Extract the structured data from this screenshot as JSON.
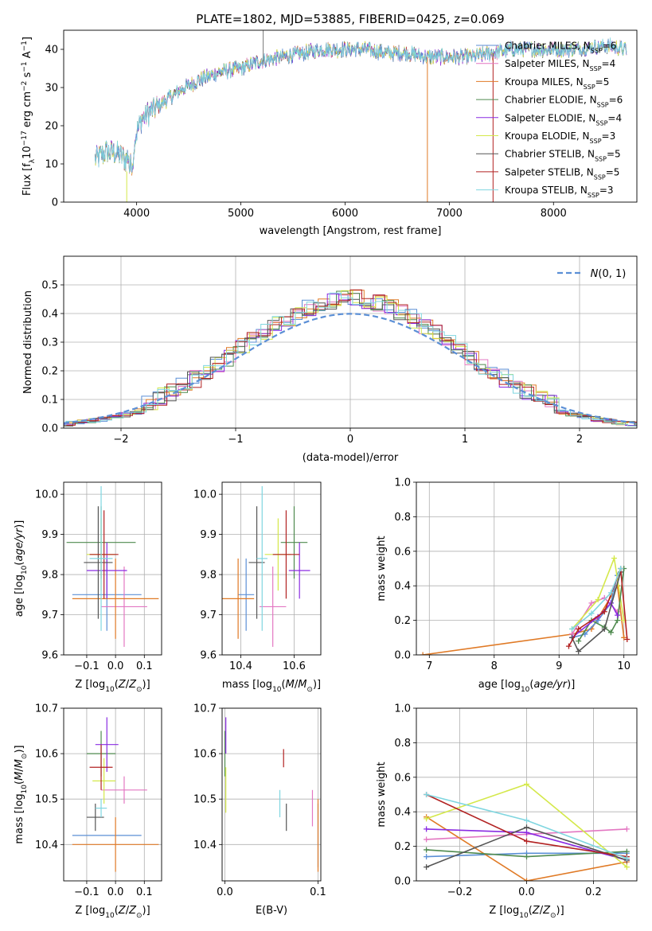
{
  "figure": {
    "title": "PLATE=1802, MJD=53885, FIBERID=0425, z=0.069"
  },
  "colors": {
    "chabrier_miles": "#5b8fd6",
    "salpeter_miles": "#e377c2",
    "kroupa_miles": "#e07a26",
    "chabrier_elodie": "#4f8a4f",
    "salpeter_elodie": "#8a2be2",
    "kroupa_elodie": "#d4e84a",
    "chabrier_stelib": "#555555",
    "salpeter_stelib": "#b22222",
    "kroupa_stelib": "#7fd6e0"
  },
  "legend": {
    "items": [
      {
        "key": "chabrier_miles",
        "label": "Chabrier MILES, N",
        "sub": "SSP",
        "suffix": "=6"
      },
      {
        "key": "salpeter_miles",
        "label": "Salpeter MILES, N",
        "sub": "SSP",
        "suffix": "=4"
      },
      {
        "key": "kroupa_miles",
        "label": "Kroupa MILES, N",
        "sub": "SSP",
        "suffix": "=5"
      },
      {
        "key": "chabrier_elodie",
        "label": "Chabrier ELODIE, N",
        "sub": "SSP",
        "suffix": "=6"
      },
      {
        "key": "salpeter_elodie",
        "label": "Salpeter ELODIE, N",
        "sub": "SSP",
        "suffix": "=4"
      },
      {
        "key": "kroupa_elodie",
        "label": "Kroupa ELODIE, N",
        "sub": "SSP",
        "suffix": "=3"
      },
      {
        "key": "chabrier_stelib",
        "label": "Chabrier STELIB, N",
        "sub": "SSP",
        "suffix": "=5"
      },
      {
        "key": "salpeter_stelib",
        "label": "Salpeter STELIB, N",
        "sub": "SSP",
        "suffix": "=5"
      },
      {
        "key": "kroupa_stelib",
        "label": "Kroupa STELIB, N",
        "sub": "SSP",
        "suffix": "=3"
      }
    ]
  },
  "chart_data": [
    {
      "id": "spectrum",
      "type": "line",
      "xlabel": "wavelength [Angstrom, rest frame]",
      "ylabel": "Flux [f_λ 10^-17 erg cm^-2 s^-1 A^-1]",
      "xlim": [
        3300,
        8800
      ],
      "ylim": [
        0,
        45
      ],
      "xticks": [
        4000,
        5000,
        6000,
        7000,
        8000
      ],
      "yticks": [
        0,
        10,
        20,
        30,
        40
      ],
      "anchors_x": [
        3600,
        3700,
        3800,
        3900,
        3950,
        4050,
        4150,
        4300,
        4400,
        4600,
        4800,
        5000,
        5200,
        5400,
        5600,
        5800,
        6000,
        6200,
        6400,
        6600,
        6800,
        7000,
        7200,
        7400,
        7600,
        7800,
        8000,
        8200,
        8500,
        8700
      ],
      "anchors_y": [
        11,
        13,
        13,
        11,
        14,
        22,
        24,
        27,
        29,
        32,
        34,
        35,
        37,
        38,
        39,
        40,
        40,
        40,
        39,
        39,
        38,
        38,
        38,
        39,
        40,
        40,
        40,
        40,
        41,
        40
      ],
      "grid": false
    },
    {
      "id": "residuals",
      "type": "histogram",
      "xlabel": "(data-model)/error",
      "ylabel": "Normed distribution",
      "xlim": [
        -2.5,
        2.5
      ],
      "ylim": [
        0,
        0.6
      ],
      "xticks": [
        -2,
        -1,
        0,
        1,
        2
      ],
      "yticks": [
        0,
        0.1,
        0.2,
        0.3,
        0.4,
        0.5
      ],
      "legend_label": "N(0,1)",
      "legend_position": "top-right",
      "grid": true
    },
    {
      "id": "age_vs_Z",
      "type": "scatter-errorbar",
      "xlabel": "Z [log10(Z/Z⊙)]",
      "ylabel": "age [log10(age/yr)]",
      "xlim": [
        -0.18,
        0.16
      ],
      "ylim": [
        9.6,
        10.03
      ],
      "xticks": [
        -0.1,
        0.0,
        0.1
      ],
      "yticks": [
        9.6,
        9.7,
        9.8,
        9.9,
        10.0
      ],
      "points": [
        {
          "key": "chabrier_miles",
          "x": -0.03,
          "y": 9.75,
          "xerr": 0.12,
          "yerr": 0.09
        },
        {
          "key": "salpeter_miles",
          "x": 0.03,
          "y": 9.72,
          "xerr": 0.08,
          "yerr": 0.1
        },
        {
          "key": "kroupa_miles",
          "x": 0.0,
          "y": 9.74,
          "xerr": 0.15,
          "yerr": 0.1
        },
        {
          "key": "chabrier_elodie",
          "x": -0.05,
          "y": 9.88,
          "xerr": 0.12,
          "yerr": 0.09
        },
        {
          "key": "salpeter_elodie",
          "x": -0.03,
          "y": 9.81,
          "xerr": 0.07,
          "yerr": 0.07
        },
        {
          "key": "kroupa_elodie",
          "x": -0.05,
          "y": 9.85,
          "xerr": 0.05,
          "yerr": 0.09
        },
        {
          "key": "chabrier_stelib",
          "x": -0.06,
          "y": 9.83,
          "xerr": 0.05,
          "yerr": 0.14
        },
        {
          "key": "salpeter_stelib",
          "x": -0.04,
          "y": 9.85,
          "xerr": 0.05,
          "yerr": 0.11
        },
        {
          "key": "kroupa_stelib",
          "x": -0.05,
          "y": 9.84,
          "xerr": 0.04,
          "yerr": 0.18
        }
      ],
      "grid": true
    },
    {
      "id": "age_vs_mass",
      "type": "scatter-errorbar",
      "xlabel": "mass [log10(M/M⊙)]",
      "ylabel": "",
      "xlim": [
        10.33,
        10.7
      ],
      "ylim": [
        9.6,
        10.03
      ],
      "xticks": [
        10.4,
        10.6
      ],
      "yticks": [
        9.6,
        9.7,
        9.8,
        9.9,
        10.0
      ],
      "points": [
        {
          "key": "chabrier_miles",
          "x": 10.42,
          "y": 9.75,
          "xerr": 0.03,
          "yerr": 0.09
        },
        {
          "key": "salpeter_miles",
          "x": 10.52,
          "y": 9.72,
          "xerr": 0.05,
          "yerr": 0.1
        },
        {
          "key": "kroupa_miles",
          "x": 10.39,
          "y": 9.74,
          "xerr": 0.06,
          "yerr": 0.1
        },
        {
          "key": "chabrier_elodie",
          "x": 10.6,
          "y": 9.88,
          "xerr": 0.05,
          "yerr": 0.09
        },
        {
          "key": "salpeter_elodie",
          "x": 10.62,
          "y": 9.81,
          "xerr": 0.04,
          "yerr": 0.07
        },
        {
          "key": "kroupa_elodie",
          "x": 10.54,
          "y": 9.85,
          "xerr": 0.05,
          "yerr": 0.09
        },
        {
          "key": "chabrier_stelib",
          "x": 10.46,
          "y": 9.83,
          "xerr": 0.03,
          "yerr": 0.14
        },
        {
          "key": "salpeter_stelib",
          "x": 10.57,
          "y": 9.85,
          "xerr": 0.05,
          "yerr": 0.11
        },
        {
          "key": "kroupa_stelib",
          "x": 10.48,
          "y": 9.84,
          "xerr": 0.02,
          "yerr": 0.18
        }
      ],
      "grid": true
    },
    {
      "id": "weight_vs_age",
      "type": "line",
      "xlabel": "age [log10(age/yr)]",
      "ylabel": "mass weight",
      "xlim": [
        6.8,
        10.2
      ],
      "ylim": [
        0,
        1
      ],
      "xticks": [
        7,
        8,
        9,
        10
      ],
      "yticks": [
        0,
        0.2,
        0.4,
        0.6,
        0.8,
        1.0
      ],
      "series": [
        {
          "key": "kroupa_miles",
          "x": [
            6.9,
            9.2,
            9.5,
            9.9,
            10.0
          ],
          "y": [
            0.0,
            0.12,
            0.15,
            0.4,
            0.1
          ]
        },
        {
          "key": "chabrier_miles",
          "x": [
            9.2,
            9.4,
            9.6,
            9.8,
            9.9
          ],
          "y": [
            0.1,
            0.12,
            0.2,
            0.3,
            0.46
          ]
        },
        {
          "key": "salpeter_miles",
          "x": [
            9.2,
            9.5,
            9.7,
            9.9
          ],
          "y": [
            0.12,
            0.3,
            0.33,
            0.25
          ]
        },
        {
          "key": "kroupa_elodie",
          "x": [
            9.2,
            9.6,
            9.85,
            10.0
          ],
          "y": [
            0.15,
            0.32,
            0.56,
            0.2
          ]
        },
        {
          "key": "chabrier_elodie",
          "x": [
            9.3,
            9.5,
            9.7,
            9.8,
            9.9,
            10.0
          ],
          "y": [
            0.08,
            0.2,
            0.16,
            0.13,
            0.2,
            0.5
          ]
        },
        {
          "key": "salpeter_elodie",
          "x": [
            9.2,
            9.6,
            9.8,
            9.9
          ],
          "y": [
            0.1,
            0.22,
            0.3,
            0.23
          ]
        },
        {
          "key": "chabrier_stelib",
          "x": [
            9.2,
            9.3,
            9.7,
            9.95
          ],
          "y": [
            0.1,
            0.02,
            0.15,
            0.48
          ]
        },
        {
          "key": "salpeter_stelib",
          "x": [
            9.15,
            9.3,
            9.7,
            9.95,
            10.05
          ],
          "y": [
            0.05,
            0.15,
            0.25,
            0.5,
            0.09
          ]
        },
        {
          "key": "kroupa_stelib",
          "x": [
            9.2,
            9.5,
            9.8,
            9.95
          ],
          "y": [
            0.15,
            0.24,
            0.36,
            0.5
          ]
        }
      ],
      "grid": true
    },
    {
      "id": "mass_vs_Z",
      "type": "scatter-errorbar",
      "xlabel": "Z [log10(Z/Z⊙)]",
      "ylabel": "mass [log10(M/M⊙)]",
      "xlim": [
        -0.18,
        0.16
      ],
      "ylim": [
        10.32,
        10.7
      ],
      "xticks": [
        -0.1,
        0.0,
        0.1
      ],
      "yticks": [
        10.4,
        10.5,
        10.6,
        10.7
      ],
      "points": [
        {
          "key": "chabrier_miles",
          "x": -0.03,
          "y": 10.42,
          "xerr": 0.12,
          "yerr": 0.0
        },
        {
          "key": "salpeter_miles",
          "x": 0.03,
          "y": 10.52,
          "xerr": 0.08,
          "yerr": 0.03
        },
        {
          "key": "kroupa_miles",
          "x": 0.0,
          "y": 10.4,
          "xerr": 0.15,
          "yerr": 0.06
        },
        {
          "key": "chabrier_elodie",
          "x": -0.05,
          "y": 10.6,
          "xerr": 0.05,
          "yerr": 0.05
        },
        {
          "key": "salpeter_elodie",
          "x": -0.03,
          "y": 10.62,
          "xerr": 0.04,
          "yerr": 0.06
        },
        {
          "key": "kroupa_elodie",
          "x": -0.04,
          "y": 10.54,
          "xerr": 0.04,
          "yerr": 0.05
        },
        {
          "key": "chabrier_stelib",
          "x": -0.07,
          "y": 10.46,
          "xerr": 0.03,
          "yerr": 0.03
        },
        {
          "key": "salpeter_stelib",
          "x": -0.05,
          "y": 10.57,
          "xerr": 0.04,
          "yerr": 0.05
        },
        {
          "key": "kroupa_stelib",
          "x": -0.05,
          "y": 10.48,
          "xerr": 0.02,
          "yerr": 0.02
        }
      ],
      "grid": true
    },
    {
      "id": "mass_vs_ebv",
      "type": "scatter-errorbar",
      "xlabel": "E(B-V)",
      "ylabel": "",
      "xlim": [
        -0.003,
        0.103
      ],
      "ylim": [
        10.32,
        10.7
      ],
      "xticks": [
        0.0,
        0.1
      ],
      "yticks": [
        10.4,
        10.5,
        10.6,
        10.7
      ],
      "points": [
        {
          "key": "chabrier_miles",
          "x": 0.1,
          "y": 10.42,
          "xerr": 0,
          "yerr": 0.07
        },
        {
          "key": "salpeter_miles",
          "x": 0.094,
          "y": 10.48,
          "xerr": 0,
          "yerr": 0.04
        },
        {
          "key": "kroupa_miles",
          "x": 0.1,
          "y": 10.42,
          "xerr": 0,
          "yerr": 0.08
        },
        {
          "key": "chabrier_elodie",
          "x": 0.0,
          "y": 10.6,
          "xerr": 0,
          "yerr": 0.05
        },
        {
          "key": "salpeter_elodie",
          "x": 0.001,
          "y": 10.64,
          "xerr": 0,
          "yerr": 0.04
        },
        {
          "key": "kroupa_elodie",
          "x": 0.001,
          "y": 10.52,
          "xerr": 0,
          "yerr": 0.05
        },
        {
          "key": "chabrier_stelib",
          "x": 0.066,
          "y": 10.46,
          "xerr": 0,
          "yerr": 0.03
        },
        {
          "key": "salpeter_stelib",
          "x": 0.063,
          "y": 10.59,
          "xerr": 0,
          "yerr": 0.02
        },
        {
          "key": "kroupa_stelib",
          "x": 0.059,
          "y": 10.49,
          "xerr": 0,
          "yerr": 0.03
        }
      ],
      "grid": true
    },
    {
      "id": "weight_vs_Z",
      "type": "line",
      "xlabel": "Z [log10(Z/Z⊙)]",
      "ylabel": "mass weight",
      "xlim": [
        -0.33,
        0.33
      ],
      "ylim": [
        0,
        1
      ],
      "xticks": [
        -0.2,
        0.0,
        0.2
      ],
      "yticks": [
        0,
        0.2,
        0.4,
        0.6,
        0.8,
        1.0
      ],
      "series": [
        {
          "key": "chabrier_miles",
          "x": [
            -0.3,
            0.0,
            0.3
          ],
          "y": [
            0.14,
            0.16,
            0.16
          ]
        },
        {
          "key": "salpeter_miles",
          "x": [
            -0.3,
            0.0,
            0.3
          ],
          "y": [
            0.24,
            0.27,
            0.3
          ]
        },
        {
          "key": "kroupa_miles",
          "x": [
            -0.3,
            0.0,
            0.3
          ],
          "y": [
            0.37,
            0.0,
            0.11
          ]
        },
        {
          "key": "chabrier_elodie",
          "x": [
            -0.3,
            0.0,
            0.3
          ],
          "y": [
            0.18,
            0.14,
            0.17
          ]
        },
        {
          "key": "salpeter_elodie",
          "x": [
            -0.3,
            0.0,
            0.3
          ],
          "y": [
            0.3,
            0.28,
            0.12
          ]
        },
        {
          "key": "kroupa_elodie",
          "x": [
            -0.3,
            0.0,
            0.3
          ],
          "y": [
            0.36,
            0.56,
            0.08
          ]
        },
        {
          "key": "chabrier_stelib",
          "x": [
            -0.3,
            0.0,
            0.3
          ],
          "y": [
            0.08,
            0.31,
            0.12
          ]
        },
        {
          "key": "salpeter_stelib",
          "x": [
            -0.3,
            0.0,
            0.3
          ],
          "y": [
            0.5,
            0.23,
            0.14
          ]
        },
        {
          "key": "kroupa_stelib",
          "x": [
            -0.3,
            0.0,
            0.3
          ],
          "y": [
            0.5,
            0.35,
            0.13
          ]
        }
      ],
      "grid": true
    }
  ]
}
